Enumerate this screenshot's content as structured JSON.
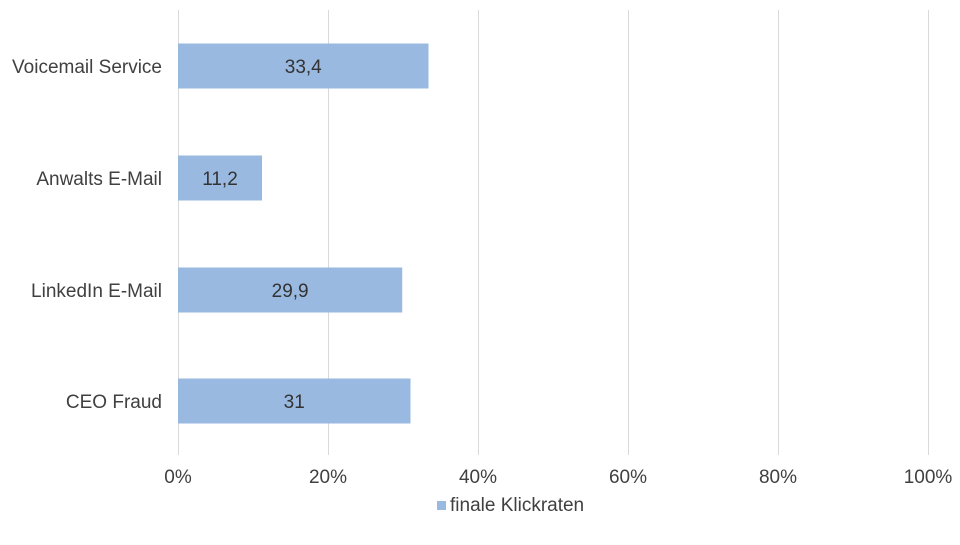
{
  "chart_data": {
    "type": "bar",
    "orientation": "horizontal",
    "title": "",
    "xlabel": "",
    "ylabel": "",
    "categories": [
      "Voicemail Service",
      "Anwalts E-Mail",
      "LinkedIn E-Mail",
      "CEO Fraud"
    ],
    "series": [
      {
        "name": "finale Klickraten",
        "values": [
          33.4,
          11.2,
          29.9,
          31
        ],
        "value_labels": [
          "33,4",
          "11,2",
          "29,9",
          "31"
        ],
        "color": "#9ab9e0"
      }
    ],
    "xlim": [
      0,
      100
    ],
    "x_ticks": [
      0,
      20,
      40,
      60,
      80,
      100
    ],
    "x_tick_labels": [
      "0%",
      "20%",
      "40%",
      "60%",
      "80%",
      "100%"
    ],
    "grid": "vertical",
    "legend_position": "bottom",
    "gridline_color": "#d9d9d9"
  }
}
